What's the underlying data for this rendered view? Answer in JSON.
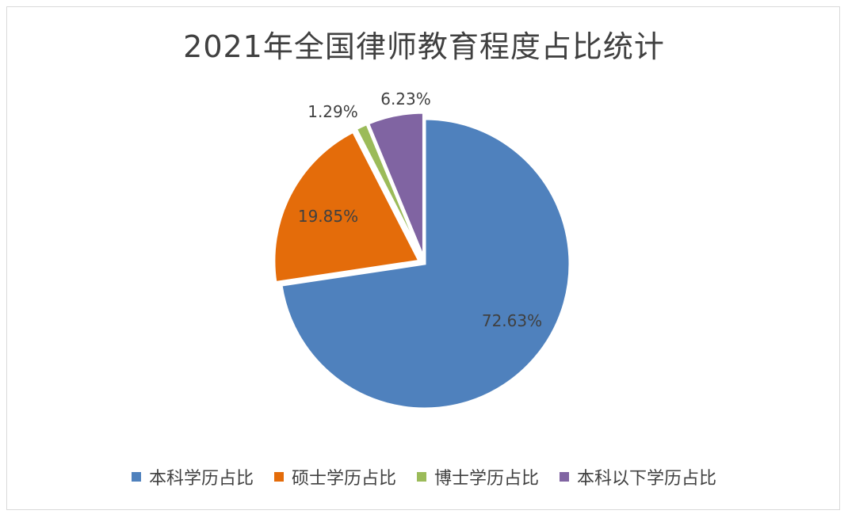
{
  "chart_data": {
    "type": "pie",
    "title": "2021年全国律师教育程度占比统计",
    "slices": [
      {
        "label": "本科学历占比",
        "value": 72.63,
        "value_label": "72.63%",
        "color": "#4f81bd",
        "explode": false
      },
      {
        "label": "硕士学历占比",
        "value": 19.85,
        "value_label": "19.85%",
        "color": "#e46c0a",
        "explode": true
      },
      {
        "label": "博士学历占比",
        "value": 1.29,
        "value_label": "1.29%",
        "color": "#9bbb59",
        "explode": true
      },
      {
        "label": "本科以下学历占比",
        "value": 6.23,
        "value_label": "6.23%",
        "color": "#8064a2",
        "explode": true
      }
    ],
    "legend_position": "bottom"
  }
}
